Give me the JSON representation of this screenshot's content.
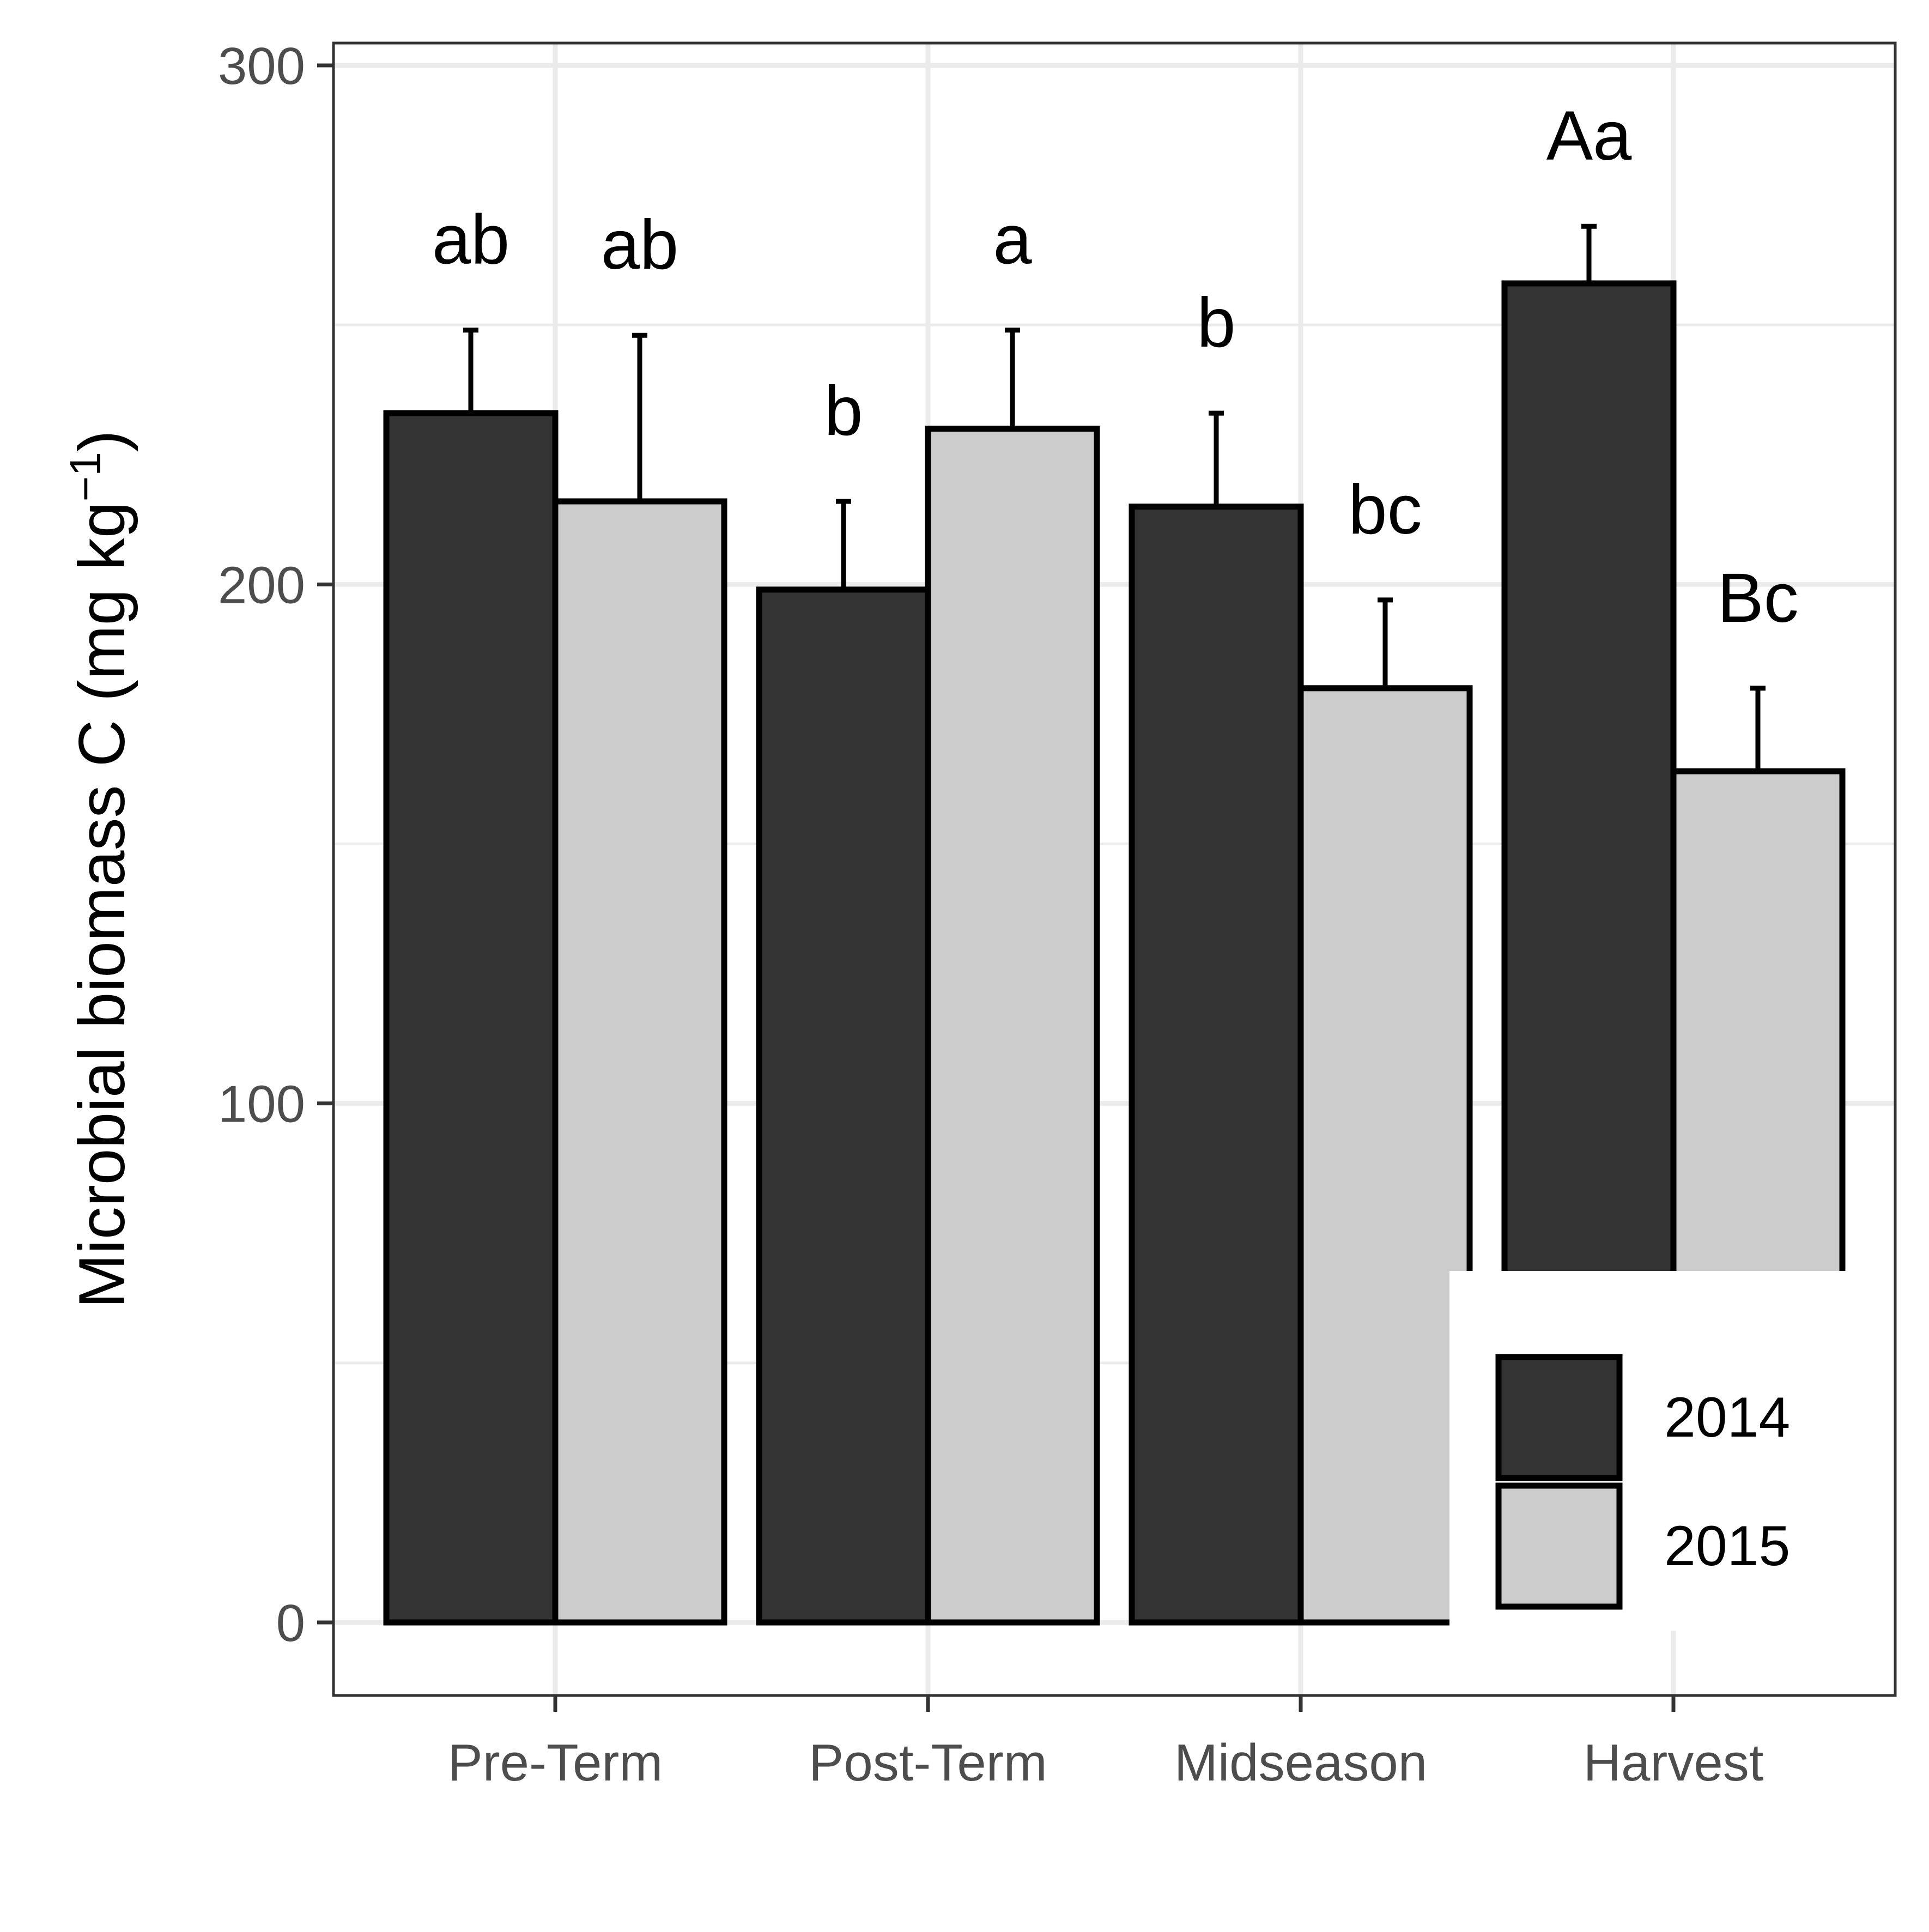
{
  "chart_data": {
    "type": "bar",
    "title": "",
    "xlabel": "",
    "ylabel": "Microbial biomass C (mg kg",
    "ylabel_superscript": "−1",
    "ylabel_close": ")",
    "categories": [
      "Pre-Term",
      "Post-Term",
      "Midseason",
      "Harvest"
    ],
    "ylim": [
      -15,
      304
    ],
    "yticks": [
      0,
      100,
      200,
      300
    ],
    "grid": true,
    "legend_position": "bottom-right",
    "series": [
      {
        "name": "2014",
        "color": "#333333",
        "values": [
          233,
          199,
          215,
          258
        ],
        "error": [
          16,
          17,
          18,
          11
        ],
        "labels": [
          "ab",
          "b",
          "b",
          "Aa"
        ]
      },
      {
        "name": "2015",
        "color": "#cccccc",
        "values": [
          216,
          230,
          180,
          164
        ],
        "error": [
          32,
          19,
          17,
          16
        ],
        "labels": [
          "ab",
          "a",
          "bc",
          "Bc"
        ]
      }
    ]
  }
}
